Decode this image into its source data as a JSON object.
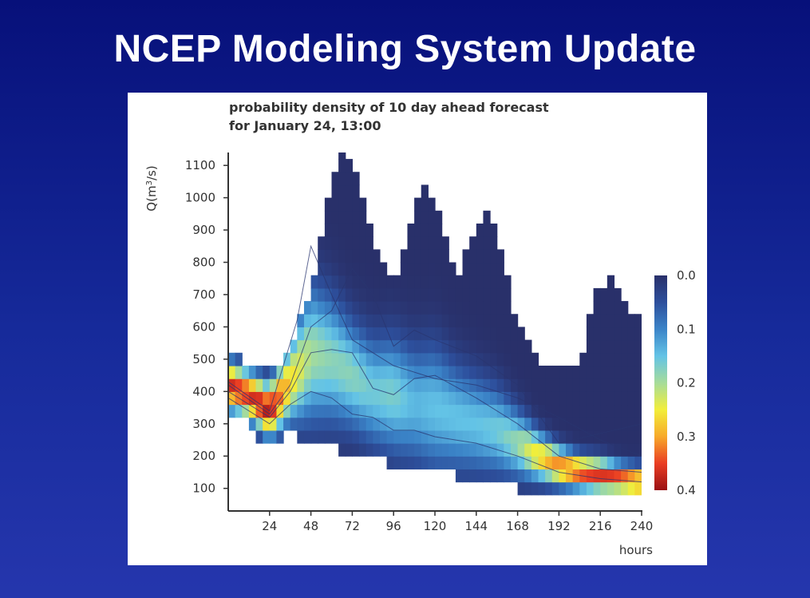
{
  "slide": {
    "title": "NCEP Modeling System Update"
  },
  "chart_data": {
    "type": "heatmap",
    "title": "probability density of 10 day ahead forecast",
    "subtitle": "for January 24, 13:00",
    "xlabel": "hours",
    "ylabel_prefix": "Q(m",
    "ylabel_exp": "3",
    "ylabel_suffix": "/s)",
    "xlim": [
      0,
      240
    ],
    "ylim": [
      30,
      1140
    ],
    "x_ticks": [
      24,
      48,
      72,
      96,
      120,
      144,
      168,
      192,
      216,
      240
    ],
    "y_ticks": [
      100,
      200,
      300,
      400,
      500,
      600,
      700,
      800,
      900,
      1000,
      1100
    ],
    "colorbar": {
      "range": [
        0.0,
        0.4
      ],
      "ticks": [
        "0.0",
        "0.1",
        "0.2",
        "0.3",
        "0.4"
      ],
      "colors": [
        "#29306a",
        "#2d4f9c",
        "#3b84c8",
        "#63c3e6",
        "#a6dc9a",
        "#f2ee3a",
        "#f7a92a",
        "#ea3d23",
        "#9a1114"
      ]
    },
    "envelope": {
      "x": [
        0,
        12,
        24,
        36,
        48,
        60,
        66,
        72,
        84,
        96,
        108,
        114,
        120,
        132,
        144,
        150,
        156,
        168,
        180,
        192,
        204,
        210,
        216,
        222,
        228,
        234,
        240
      ],
      "upper": [
        540,
        460,
        470,
        520,
        720,
        1040,
        1140,
        1100,
        860,
        740,
        970,
        1020,
        990,
        740,
        930,
        940,
        890,
        600,
        480,
        460,
        470,
        640,
        730,
        740,
        720,
        640,
        610
      ],
      "lower": [
        330,
        300,
        220,
        270,
        250,
        230,
        220,
        210,
        200,
        170,
        180,
        160,
        150,
        140,
        120,
        110,
        110,
        100,
        90,
        80,
        70,
        65,
        65,
        65,
        65,
        65,
        65
      ]
    },
    "density_ridge": {
      "x": [
        0,
        12,
        24,
        36,
        48,
        60,
        72,
        84,
        96,
        108,
        120,
        132,
        144,
        156,
        168,
        180,
        192,
        204,
        216,
        228,
        240
      ],
      "q": [
        420,
        390,
        340,
        430,
        520,
        500,
        450,
        400,
        390,
        360,
        350,
        320,
        300,
        280,
        240,
        200,
        170,
        150,
        140,
        130,
        120
      ],
      "width": [
        50,
        50,
        55,
        80,
        140,
        130,
        110,
        110,
        120,
        120,
        130,
        110,
        100,
        90,
        70,
        50,
        40,
        35,
        35,
        30,
        30
      ],
      "peak": [
        0.37,
        0.36,
        0.39,
        0.27,
        0.2,
        0.18,
        0.18,
        0.16,
        0.17,
        0.14,
        0.15,
        0.15,
        0.15,
        0.16,
        0.19,
        0.27,
        0.32,
        0.35,
        0.36,
        0.36,
        0.34
      ]
    },
    "member_traces": [
      {
        "x": [
          0,
          24,
          36,
          48,
          60,
          72,
          84,
          96,
          108,
          120,
          144,
          168,
          192,
          216,
          240
        ],
        "q": [
          420,
          330,
          420,
          600,
          650,
          780,
          700,
          540,
          590,
          560,
          510,
          420,
          240,
          270,
          300
        ]
      },
      {
        "x": [
          0,
          24,
          36,
          48,
          60,
          72,
          84,
          96,
          108,
          120,
          144,
          168,
          192,
          216,
          240
        ],
        "q": [
          400,
          320,
          400,
          520,
          530,
          520,
          410,
          390,
          440,
          450,
          380,
          300,
          200,
          160,
          150
        ]
      },
      {
        "x": [
          0,
          24,
          36,
          48,
          60,
          72,
          84,
          96,
          108,
          120,
          144,
          168,
          192,
          216,
          240
        ],
        "q": [
          380,
          300,
          360,
          400,
          380,
          330,
          320,
          280,
          280,
          260,
          240,
          200,
          150,
          130,
          120
        ]
      },
      {
        "x": [
          0,
          24,
          40,
          48,
          60,
          72,
          96,
          120,
          144,
          168,
          192,
          216,
          240
        ],
        "q": [
          430,
          340,
          620,
          850,
          700,
          560,
          480,
          440,
          420,
          380,
          320,
          250,
          200
        ]
      }
    ]
  }
}
